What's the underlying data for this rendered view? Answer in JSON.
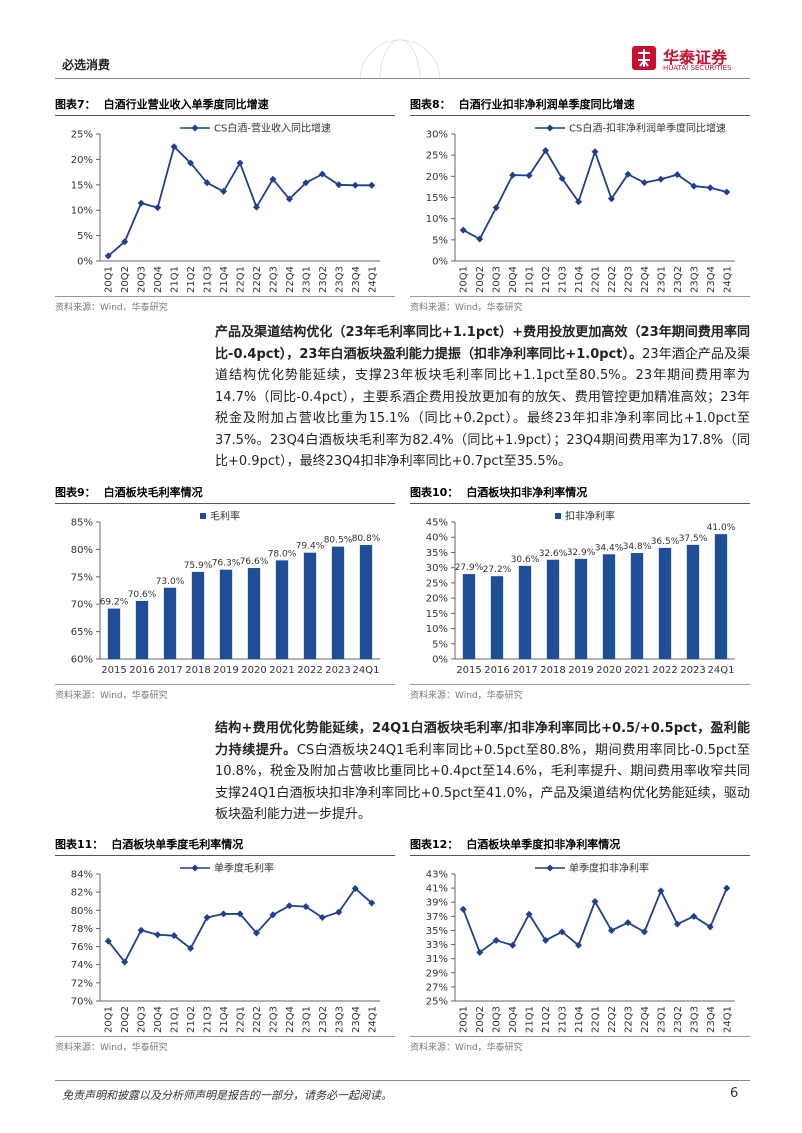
{
  "header": {
    "section": "必选消费",
    "brand": "华泰证券",
    "brand_en": "HUATAI SECURITIES"
  },
  "chart_data": [
    {
      "type": "line",
      "label": "图表7：",
      "title": "白酒行业营业收入单季度同比增速",
      "source": "资料来源：Wind，华泰研究",
      "categories": [
        "20Q1",
        "20Q2",
        "20Q3",
        "20Q4",
        "21Q1",
        "21Q2",
        "21Q3",
        "21Q4",
        "22Q1",
        "22Q2",
        "22Q3",
        "22Q4",
        "23Q1",
        "23Q2",
        "23Q3",
        "23Q4",
        "24Q1"
      ],
      "series": [
        {
          "name": "CS白酒-营业收入同比增速",
          "color": "#1f3f8f",
          "values": [
            1.0,
            3.8,
            11.4,
            10.5,
            22.5,
            19.3,
            15.4,
            13.7,
            19.3,
            10.6,
            16.1,
            12.2,
            15.4,
            17.1,
            15.0,
            14.9,
            14.9
          ]
        }
      ],
      "ylim": [
        0,
        25
      ],
      "yticks": [
        {
          "value": 0,
          "label": "0%"
        },
        {
          "value": 5,
          "label": "5%"
        },
        {
          "value": 10,
          "label": "10%"
        },
        {
          "value": 15,
          "label": "15%"
        },
        {
          "value": 20,
          "label": "20%"
        },
        {
          "value": 25,
          "label": "25%"
        }
      ]
    },
    {
      "type": "line",
      "label": "图表8：",
      "title": "白酒行业扣非净利润单季度同比增速",
      "source": "资料来源：Wind，华泰研究",
      "categories": [
        "20Q1",
        "20Q2",
        "20Q3",
        "20Q4",
        "21Q1",
        "21Q2",
        "21Q3",
        "21Q4",
        "22Q1",
        "22Q2",
        "22Q3",
        "22Q4",
        "23Q1",
        "23Q2",
        "23Q3",
        "23Q4",
        "24Q1"
      ],
      "series": [
        {
          "name": "CS白酒-扣非净利润单季度同比增速",
          "color": "#1f3f8f",
          "values": [
            7.3,
            5.2,
            12.6,
            20.3,
            20.2,
            26.1,
            19.5,
            14.0,
            25.8,
            14.7,
            20.5,
            18.5,
            19.3,
            20.4,
            17.7,
            17.3,
            16.3
          ]
        }
      ],
      "ylim": [
        0,
        30
      ],
      "yticks": [
        {
          "value": 0,
          "label": "0%"
        },
        {
          "value": 5,
          "label": "5%"
        },
        {
          "value": 10,
          "label": "10%"
        },
        {
          "value": 15,
          "label": "15%"
        },
        {
          "value": 20,
          "label": "20%"
        },
        {
          "value": 25,
          "label": "25%"
        },
        {
          "value": 30,
          "label": "30%"
        }
      ]
    },
    {
      "type": "bar",
      "label": "图表9：",
      "title": "白酒板块毛利率情况",
      "source": "资料来源：Wind，华泰研究",
      "categories": [
        "2015",
        "2016",
        "2017",
        "2018",
        "2019",
        "2020",
        "2021",
        "2022",
        "2023",
        "24Q1"
      ],
      "series": [
        {
          "name": "毛利率",
          "color": "#1f4e99",
          "values": [
            69.2,
            70.6,
            73.0,
            75.9,
            76.3,
            76.6,
            78.0,
            79.4,
            80.5,
            80.8
          ],
          "value_labels": [
            "69.2%",
            "70.6%",
            "73.0%",
            "75.9%",
            "76.3%",
            "76.6%",
            "78.0%",
            "79.4%",
            "80.5%",
            "80.8%"
          ]
        }
      ],
      "ylim": [
        60,
        85
      ],
      "yticks": [
        {
          "value": 60,
          "label": "60%"
        },
        {
          "value": 65,
          "label": "65%"
        },
        {
          "value": 70,
          "label": "70%"
        },
        {
          "value": 75,
          "label": "75%"
        },
        {
          "value": 80,
          "label": "80%"
        },
        {
          "value": 85,
          "label": "85%"
        }
      ]
    },
    {
      "type": "bar",
      "label": "图表10：",
      "title": "白酒板块扣非净利率情况",
      "source": "资料来源：Wind，华泰研究",
      "categories": [
        "2015",
        "2016",
        "2017",
        "2018",
        "2019",
        "2020",
        "2021",
        "2022",
        "2023",
        "24Q1"
      ],
      "series": [
        {
          "name": "扣非净利率",
          "color": "#1f4e99",
          "values": [
            27.9,
            27.2,
            30.6,
            32.6,
            32.9,
            34.4,
            34.8,
            36.5,
            37.5,
            41.0
          ],
          "value_labels": [
            "27.9%",
            "27.2%",
            "30.6%",
            "32.6%",
            "32.9%",
            "34.4%",
            "34.8%",
            "36.5%",
            "37.5%",
            "41.0%"
          ]
        }
      ],
      "ylim": [
        0,
        45
      ],
      "yticks": [
        {
          "value": 0,
          "label": "0%"
        },
        {
          "value": 5,
          "label": "5%"
        },
        {
          "value": 10,
          "label": "10%"
        },
        {
          "value": 15,
          "label": "15%"
        },
        {
          "value": 20,
          "label": "20%"
        },
        {
          "value": 25,
          "label": "25%"
        },
        {
          "value": 30,
          "label": "30%"
        },
        {
          "value": 35,
          "label": "35%"
        },
        {
          "value": 40,
          "label": "40%"
        },
        {
          "value": 45,
          "label": "45%"
        }
      ]
    },
    {
      "type": "line",
      "label": "图表11：",
      "title": "白酒板块单季度毛利率情况",
      "source": "资料来源：Wind，华泰研究",
      "categories": [
        "20Q1",
        "20Q2",
        "20Q3",
        "20Q4",
        "21Q1",
        "21Q2",
        "21Q3",
        "21Q4",
        "22Q1",
        "22Q2",
        "22Q3",
        "22Q4",
        "23Q1",
        "23Q2",
        "23Q3",
        "23Q4",
        "24Q1"
      ],
      "series": [
        {
          "name": "单季度毛利率",
          "color": "#1f3f8f",
          "values": [
            76.6,
            74.3,
            77.8,
            77.3,
            77.2,
            75.8,
            79.2,
            79.6,
            79.6,
            77.5,
            79.5,
            80.5,
            80.4,
            79.2,
            79.8,
            82.4,
            80.8
          ]
        }
      ],
      "ylim": [
        70,
        84
      ],
      "yticks": [
        {
          "value": 70,
          "label": "70%"
        },
        {
          "value": 72,
          "label": "72%"
        },
        {
          "value": 74,
          "label": "74%"
        },
        {
          "value": 76,
          "label": "76%"
        },
        {
          "value": 78,
          "label": "78%"
        },
        {
          "value": 80,
          "label": "80%"
        },
        {
          "value": 82,
          "label": "82%"
        },
        {
          "value": 84,
          "label": "84%"
        }
      ]
    },
    {
      "type": "line",
      "label": "图表12：",
      "title": "白酒板块单季度扣非净利率情况",
      "source": "资料来源：Wind，华泰研究",
      "categories": [
        "20Q1",
        "20Q2",
        "20Q3",
        "20Q4",
        "21Q1",
        "21Q2",
        "21Q3",
        "21Q4",
        "22Q1",
        "22Q2",
        "22Q3",
        "22Q4",
        "23Q1",
        "23Q2",
        "23Q3",
        "23Q4",
        "24Q1"
      ],
      "series": [
        {
          "name": "单季度扣非净利率",
          "color": "#1f3f8f",
          "values": [
            38.0,
            31.9,
            33.6,
            32.9,
            37.3,
            33.6,
            34.8,
            32.9,
            39.1,
            35.0,
            36.1,
            34.8,
            40.6,
            35.9,
            37.0,
            35.5,
            41.0
          ]
        }
      ],
      "ylim": [
        25,
        43
      ],
      "yticks": [
        {
          "value": 25,
          "label": "25%"
        },
        {
          "value": 27,
          "label": "27%"
        },
        {
          "value": 29,
          "label": "29%"
        },
        {
          "value": 31,
          "label": "31%"
        },
        {
          "value": 33,
          "label": "33%"
        },
        {
          "value": 35,
          "label": "35%"
        },
        {
          "value": 37,
          "label": "37%"
        },
        {
          "value": 39,
          "label": "39%"
        },
        {
          "value": 41,
          "label": "41%"
        },
        {
          "value": 43,
          "label": "43%"
        }
      ]
    }
  ],
  "paragraphs": [
    {
      "bold": "产品及渠道结构优化（23年毛利率同比+1.1pct）+费用投放更加高效（23年期间费用率同比-0.4pct），23年白酒板块盈利能力提振（扣非净利率同比+1.0pct）。",
      "text": "23年酒企产品及渠道结构优化势能延续，支撑23年板块毛利率同比+1.1pct至80.5%。23年期间费用率为14.7%（同比-0.4pct），主要系酒企费用投放更加有的放矢、费用管控更加精准高效；23年税金及附加占营收比重为15.1%（同比+0.2pct）。最终23年扣非净利率同比+1.0pct至37.5%。23Q4白酒板块毛利率为82.4%（同比+1.9pct）；23Q4期间费用率为17.8%（同比+0.9pct），最终23Q4扣非净利率同比+0.7pct至35.5%。"
    },
    {
      "bold": "结构+费用优化势能延续，24Q1白酒板块毛利率/扣非净利率同比+0.5/+0.5pct，盈利能力持续提升。",
      "text": "CS白酒板块24Q1毛利率同比+0.5pct至80.8%，期间费用率同比-0.5pct至10.8%，税金及附加占营收比重同比+0.4pct至14.6%，毛利率提升、期间费用率收窄共同支撑24Q1白酒板块扣非净利率同比+0.5pct至41.0%，产品及渠道结构优化势能延续，驱动板块盈利能力进一步提升。"
    }
  ],
  "footer": {
    "disclaimer": "免责声明和披露以及分析师声明是报告的一部分，请务必一起阅读。",
    "page": "6"
  }
}
